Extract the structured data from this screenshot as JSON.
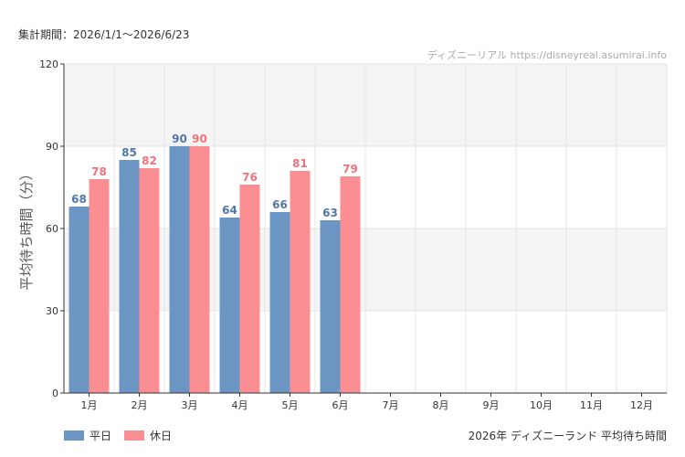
{
  "header": {
    "period": "集計期間：2026/1/1〜2026/6/23",
    "source": "ディズニーリアル https://disneyreal.asumirai.info"
  },
  "footer": {
    "title": "2026年 ディズニーランド 平均待ち時間"
  },
  "chart_data": {
    "type": "bar",
    "ylabel": "平均待ち時間（分）",
    "ylim": [
      0,
      120
    ],
    "yticks": [
      0,
      30,
      60,
      90,
      120
    ],
    "categories": [
      "1月",
      "2月",
      "3月",
      "4月",
      "5月",
      "6月",
      "7月",
      "8月",
      "9月",
      "10月",
      "11月",
      "12月"
    ],
    "series": [
      {
        "name": "平日",
        "color": "#6b96c4",
        "label_color": "#4f78a8",
        "values": [
          68,
          85,
          90,
          64,
          66,
          63,
          null,
          null,
          null,
          null,
          null,
          null
        ]
      },
      {
        "name": "休日",
        "color": "#fb8e93",
        "label_color": "#f0737a",
        "values": [
          78,
          82,
          90,
          76,
          81,
          79,
          null,
          null,
          null,
          null,
          null,
          null
        ]
      }
    ],
    "grid": true,
    "legend": "bottom-left"
  }
}
